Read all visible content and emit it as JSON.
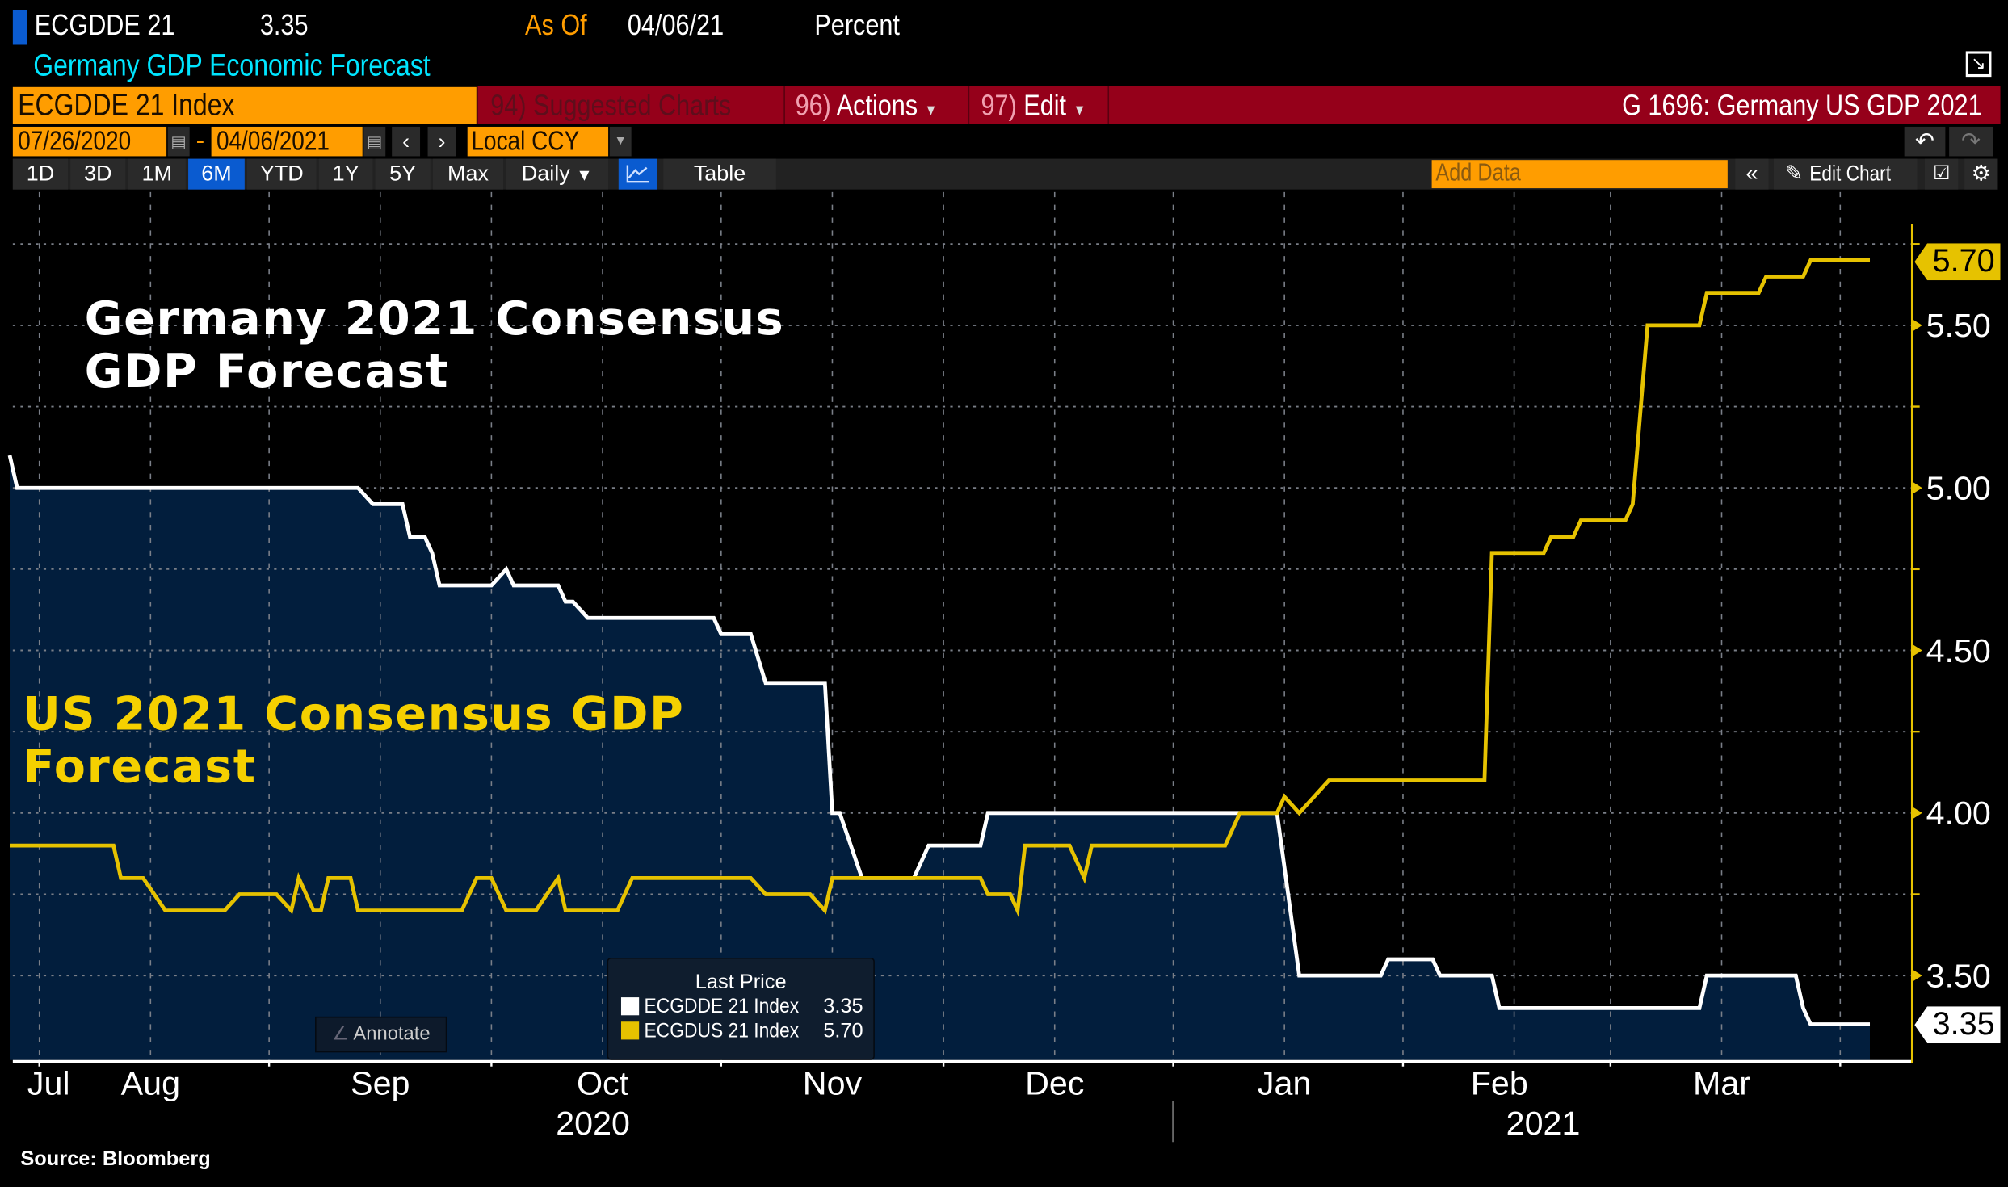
{
  "header": {
    "ticker": "ECGDDE 21",
    "last_value": "3.35",
    "as_of_label": "As Of",
    "as_of_date": "04/06/21",
    "units": "Percent",
    "description": "Germany GDP Economic Forecast"
  },
  "toolbar": {
    "security": "ECGDDE 21 Index",
    "suggested_num": "94)",
    "suggested_label": "Suggested Charts",
    "actions_num": "96)",
    "actions_label": "Actions",
    "edit_num": "97)",
    "edit_label": "Edit",
    "chart_title": "G 1696: Germany US GDP 2021",
    "start_date": "07/26/2020",
    "date_separator": "-",
    "end_date": "04/06/2021",
    "currency": "Local CCY",
    "periods": [
      "1D",
      "3D",
      "1M",
      "6M",
      "YTD",
      "1Y",
      "5Y",
      "Max"
    ],
    "active_period": "6M",
    "frequency": "Daily",
    "table_label": "Table",
    "add_data_placeholder": "Add Data",
    "edit_chart_label": "Edit Chart"
  },
  "annotate_label": "Annotate",
  "source": "Source: Bloomberg",
  "colors": {
    "background": "#000000",
    "area_fill": "#021e3d",
    "germany_line": "#ffffff",
    "us_line": "#e6c200",
    "axis": "#e6c200",
    "accent_orange": "#ff9d00",
    "toolbar_red": "#95001a",
    "description_cyan": "#00e5ff",
    "active_blue": "#0a5bd0"
  },
  "chart_data": {
    "type": "line",
    "annotations": [
      {
        "text": "Germany 2021 Consensus GDP Forecast",
        "color": "#ffffff"
      },
      {
        "text": "US 2021 Consensus GDP Forecast",
        "color": "#f5d000"
      }
    ],
    "x_range": [
      "2020-07-26",
      "2021-04-06"
    ],
    "x_month_labels": [
      "Jul",
      "Aug",
      "Sep",
      "Oct",
      "Nov",
      "Dec",
      "Jan",
      "Feb",
      "Mar"
    ],
    "x_year_labels": [
      "2020",
      "2021"
    ],
    "y_axis_side": "right",
    "ylim": [
      3.24,
      5.91
    ],
    "y_ticks": [
      "3.50",
      "4.00",
      "4.50",
      "5.00",
      "5.50"
    ],
    "grid": true,
    "legend": {
      "title": "Last Price",
      "placement": "bottom-center"
    },
    "series": [
      {
        "name": "ECGDDE 21 Index",
        "last": "3.35",
        "color": "#ffffff",
        "area": true,
        "points": [
          [
            "2020-07-28",
            5.1
          ],
          [
            "2020-07-29",
            5.0
          ],
          [
            "2020-09-13",
            5.0
          ],
          [
            "2020-09-15",
            4.95
          ],
          [
            "2020-09-19",
            4.95
          ],
          [
            "2020-09-20",
            4.85
          ],
          [
            "2020-09-22",
            4.85
          ],
          [
            "2020-09-23",
            4.8
          ],
          [
            "2020-09-24",
            4.7
          ],
          [
            "2020-10-01",
            4.7
          ],
          [
            "2020-10-03",
            4.75
          ],
          [
            "2020-10-04",
            4.7
          ],
          [
            "2020-10-10",
            4.7
          ],
          [
            "2020-10-11",
            4.65
          ],
          [
            "2020-10-12",
            4.65
          ],
          [
            "2020-10-14",
            4.6
          ],
          [
            "2020-10-31",
            4.6
          ],
          [
            "2020-11-01",
            4.55
          ],
          [
            "2020-11-05",
            4.55
          ],
          [
            "2020-11-07",
            4.4
          ],
          [
            "2020-11-15",
            4.4
          ],
          [
            "2020-11-16",
            4.0
          ],
          [
            "2020-11-17",
            4.0
          ],
          [
            "2020-11-20",
            3.8
          ],
          [
            "2020-11-27",
            3.8
          ],
          [
            "2020-11-29",
            3.9
          ],
          [
            "2020-12-06",
            3.9
          ],
          [
            "2020-12-07",
            4.0
          ],
          [
            "2021-01-15",
            4.0
          ],
          [
            "2021-01-18",
            3.5
          ],
          [
            "2021-01-29",
            3.5
          ],
          [
            "2021-01-30",
            3.55
          ],
          [
            "2021-02-05",
            3.55
          ],
          [
            "2021-02-06",
            3.5
          ],
          [
            "2021-02-13",
            3.5
          ],
          [
            "2021-02-14",
            3.4
          ],
          [
            "2021-03-13",
            3.4
          ],
          [
            "2021-03-14",
            3.5
          ],
          [
            "2021-03-26",
            3.5
          ],
          [
            "2021-03-27",
            3.4
          ],
          [
            "2021-03-28",
            3.35
          ],
          [
            "2021-04-05",
            3.35
          ]
        ]
      },
      {
        "name": "ECGDUS 21 Index",
        "last": "5.70",
        "color": "#e6c200",
        "area": false,
        "points": [
          [
            "2020-07-28",
            3.9
          ],
          [
            "2020-08-11",
            3.9
          ],
          [
            "2020-08-12",
            3.8
          ],
          [
            "2020-08-15",
            3.8
          ],
          [
            "2020-08-18",
            3.7
          ],
          [
            "2020-08-26",
            3.7
          ],
          [
            "2020-08-28",
            3.75
          ],
          [
            "2020-09-02",
            3.75
          ],
          [
            "2020-09-04",
            3.7
          ],
          [
            "2020-09-05",
            3.8
          ],
          [
            "2020-09-07",
            3.7
          ],
          [
            "2020-09-08",
            3.7
          ],
          [
            "2020-09-09",
            3.8
          ],
          [
            "2020-09-12",
            3.8
          ],
          [
            "2020-09-13",
            3.7
          ],
          [
            "2020-09-27",
            3.7
          ],
          [
            "2020-09-29",
            3.8
          ],
          [
            "2020-10-01",
            3.8
          ],
          [
            "2020-10-03",
            3.7
          ],
          [
            "2020-10-07",
            3.7
          ],
          [
            "2020-10-10",
            3.8
          ],
          [
            "2020-10-11",
            3.7
          ],
          [
            "2020-10-18",
            3.7
          ],
          [
            "2020-10-20",
            3.8
          ],
          [
            "2020-11-05",
            3.8
          ],
          [
            "2020-11-07",
            3.75
          ],
          [
            "2020-11-13",
            3.75
          ],
          [
            "2020-11-15",
            3.7
          ],
          [
            "2020-11-16",
            3.8
          ],
          [
            "2020-12-06",
            3.8
          ],
          [
            "2020-12-07",
            3.75
          ],
          [
            "2020-12-10",
            3.75
          ],
          [
            "2020-12-11",
            3.7
          ],
          [
            "2020-12-12",
            3.9
          ],
          [
            "2020-12-18",
            3.9
          ],
          [
            "2020-12-20",
            3.8
          ],
          [
            "2020-12-21",
            3.9
          ],
          [
            "2021-01-08",
            3.9
          ],
          [
            "2021-01-10",
            4.0
          ],
          [
            "2021-01-15",
            4.0
          ],
          [
            "2021-01-16",
            4.05
          ],
          [
            "2021-01-18",
            4.0
          ],
          [
            "2021-01-22",
            4.1
          ],
          [
            "2021-02-12",
            4.1
          ],
          [
            "2021-02-13",
            4.8
          ],
          [
            "2021-02-20",
            4.8
          ],
          [
            "2021-02-21",
            4.85
          ],
          [
            "2021-02-24",
            4.85
          ],
          [
            "2021-02-25",
            4.9
          ],
          [
            "2021-03-03",
            4.9
          ],
          [
            "2021-03-04",
            4.95
          ],
          [
            "2021-03-06",
            5.5
          ],
          [
            "2021-03-13",
            5.5
          ],
          [
            "2021-03-14",
            5.6
          ],
          [
            "2021-03-21",
            5.6
          ],
          [
            "2021-03-22",
            5.65
          ],
          [
            "2021-03-27",
            5.65
          ],
          [
            "2021-03-28",
            5.7
          ],
          [
            "2021-04-05",
            5.7
          ]
        ]
      }
    ]
  }
}
